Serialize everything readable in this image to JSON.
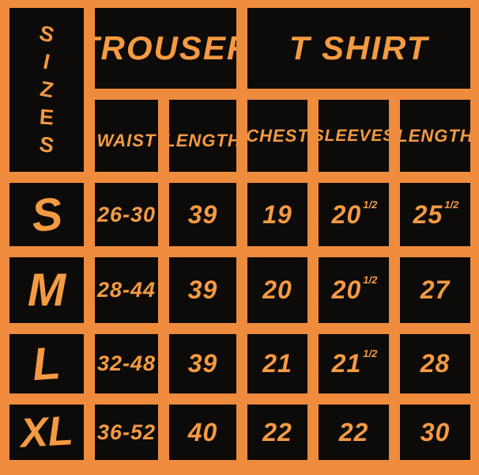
{
  "palette": {
    "background_orange": "#EF8B3D",
    "cell_black": "#0C0B09",
    "text_orange": "#F59A42"
  },
  "sizes_header": {
    "text": "SIZES",
    "letters": [
      "S",
      "I",
      "Z",
      "E",
      "S"
    ]
  },
  "section_headers": {
    "trouser": "TROUSER",
    "tshirt": "T SHIRT"
  },
  "column_headers": {
    "waist": "WAIST",
    "trouser_length": "LENGTH",
    "chest": "CHEST",
    "sleeves": "SLEEVES",
    "tshirt_length": "LENGTH"
  },
  "rows": [
    {
      "size": "S",
      "waist": "26-30",
      "trouser_length": "39",
      "chest": "19",
      "sleeves_main": "20",
      "sleeves_sup": "1/2",
      "length_main": "25",
      "length_sup": "1/2"
    },
    {
      "size": "M",
      "waist": "28-44",
      "trouser_length": "39",
      "chest": "20",
      "sleeves_main": "20",
      "sleeves_sup": "1/2",
      "length_main": "27",
      "length_sup": ""
    },
    {
      "size": "L",
      "waist": "32-48",
      "trouser_length": "39",
      "chest": "21",
      "sleeves_main": "21",
      "sleeves_sup": "1/2",
      "length_main": "28",
      "length_sup": ""
    },
    {
      "size": "XL",
      "waist": "36-52",
      "trouser_length": "40",
      "chest": "22",
      "sleeves_main": "22",
      "sleeves_sup": "",
      "length_main": "30",
      "length_sup": ""
    }
  ],
  "chart_data": {
    "type": "table",
    "title": "SIZES",
    "column_groups": [
      {
        "label": "TROUSER",
        "columns": [
          "WAIST",
          "LENGTH"
        ]
      },
      {
        "label": "T SHIRT",
        "columns": [
          "CHEST",
          "SLEEVES",
          "LENGTH"
        ]
      }
    ],
    "rows": [
      {
        "size": "S",
        "trouser": {
          "waist": "26-30",
          "length": 39
        },
        "tshirt": {
          "chest": 19,
          "sleeves": 20.5,
          "length": 25.5
        }
      },
      {
        "size": "M",
        "trouser": {
          "waist": "28-44",
          "length": 39
        },
        "tshirt": {
          "chest": 20,
          "sleeves": 20.5,
          "length": 27
        }
      },
      {
        "size": "L",
        "trouser": {
          "waist": "32-48",
          "length": 39
        },
        "tshirt": {
          "chest": 21,
          "sleeves": 21.5,
          "length": 28
        }
      },
      {
        "size": "XL",
        "trouser": {
          "waist": "36-52",
          "length": 40
        },
        "tshirt": {
          "chest": 22,
          "sleeves": 22,
          "length": 30
        }
      }
    ]
  }
}
